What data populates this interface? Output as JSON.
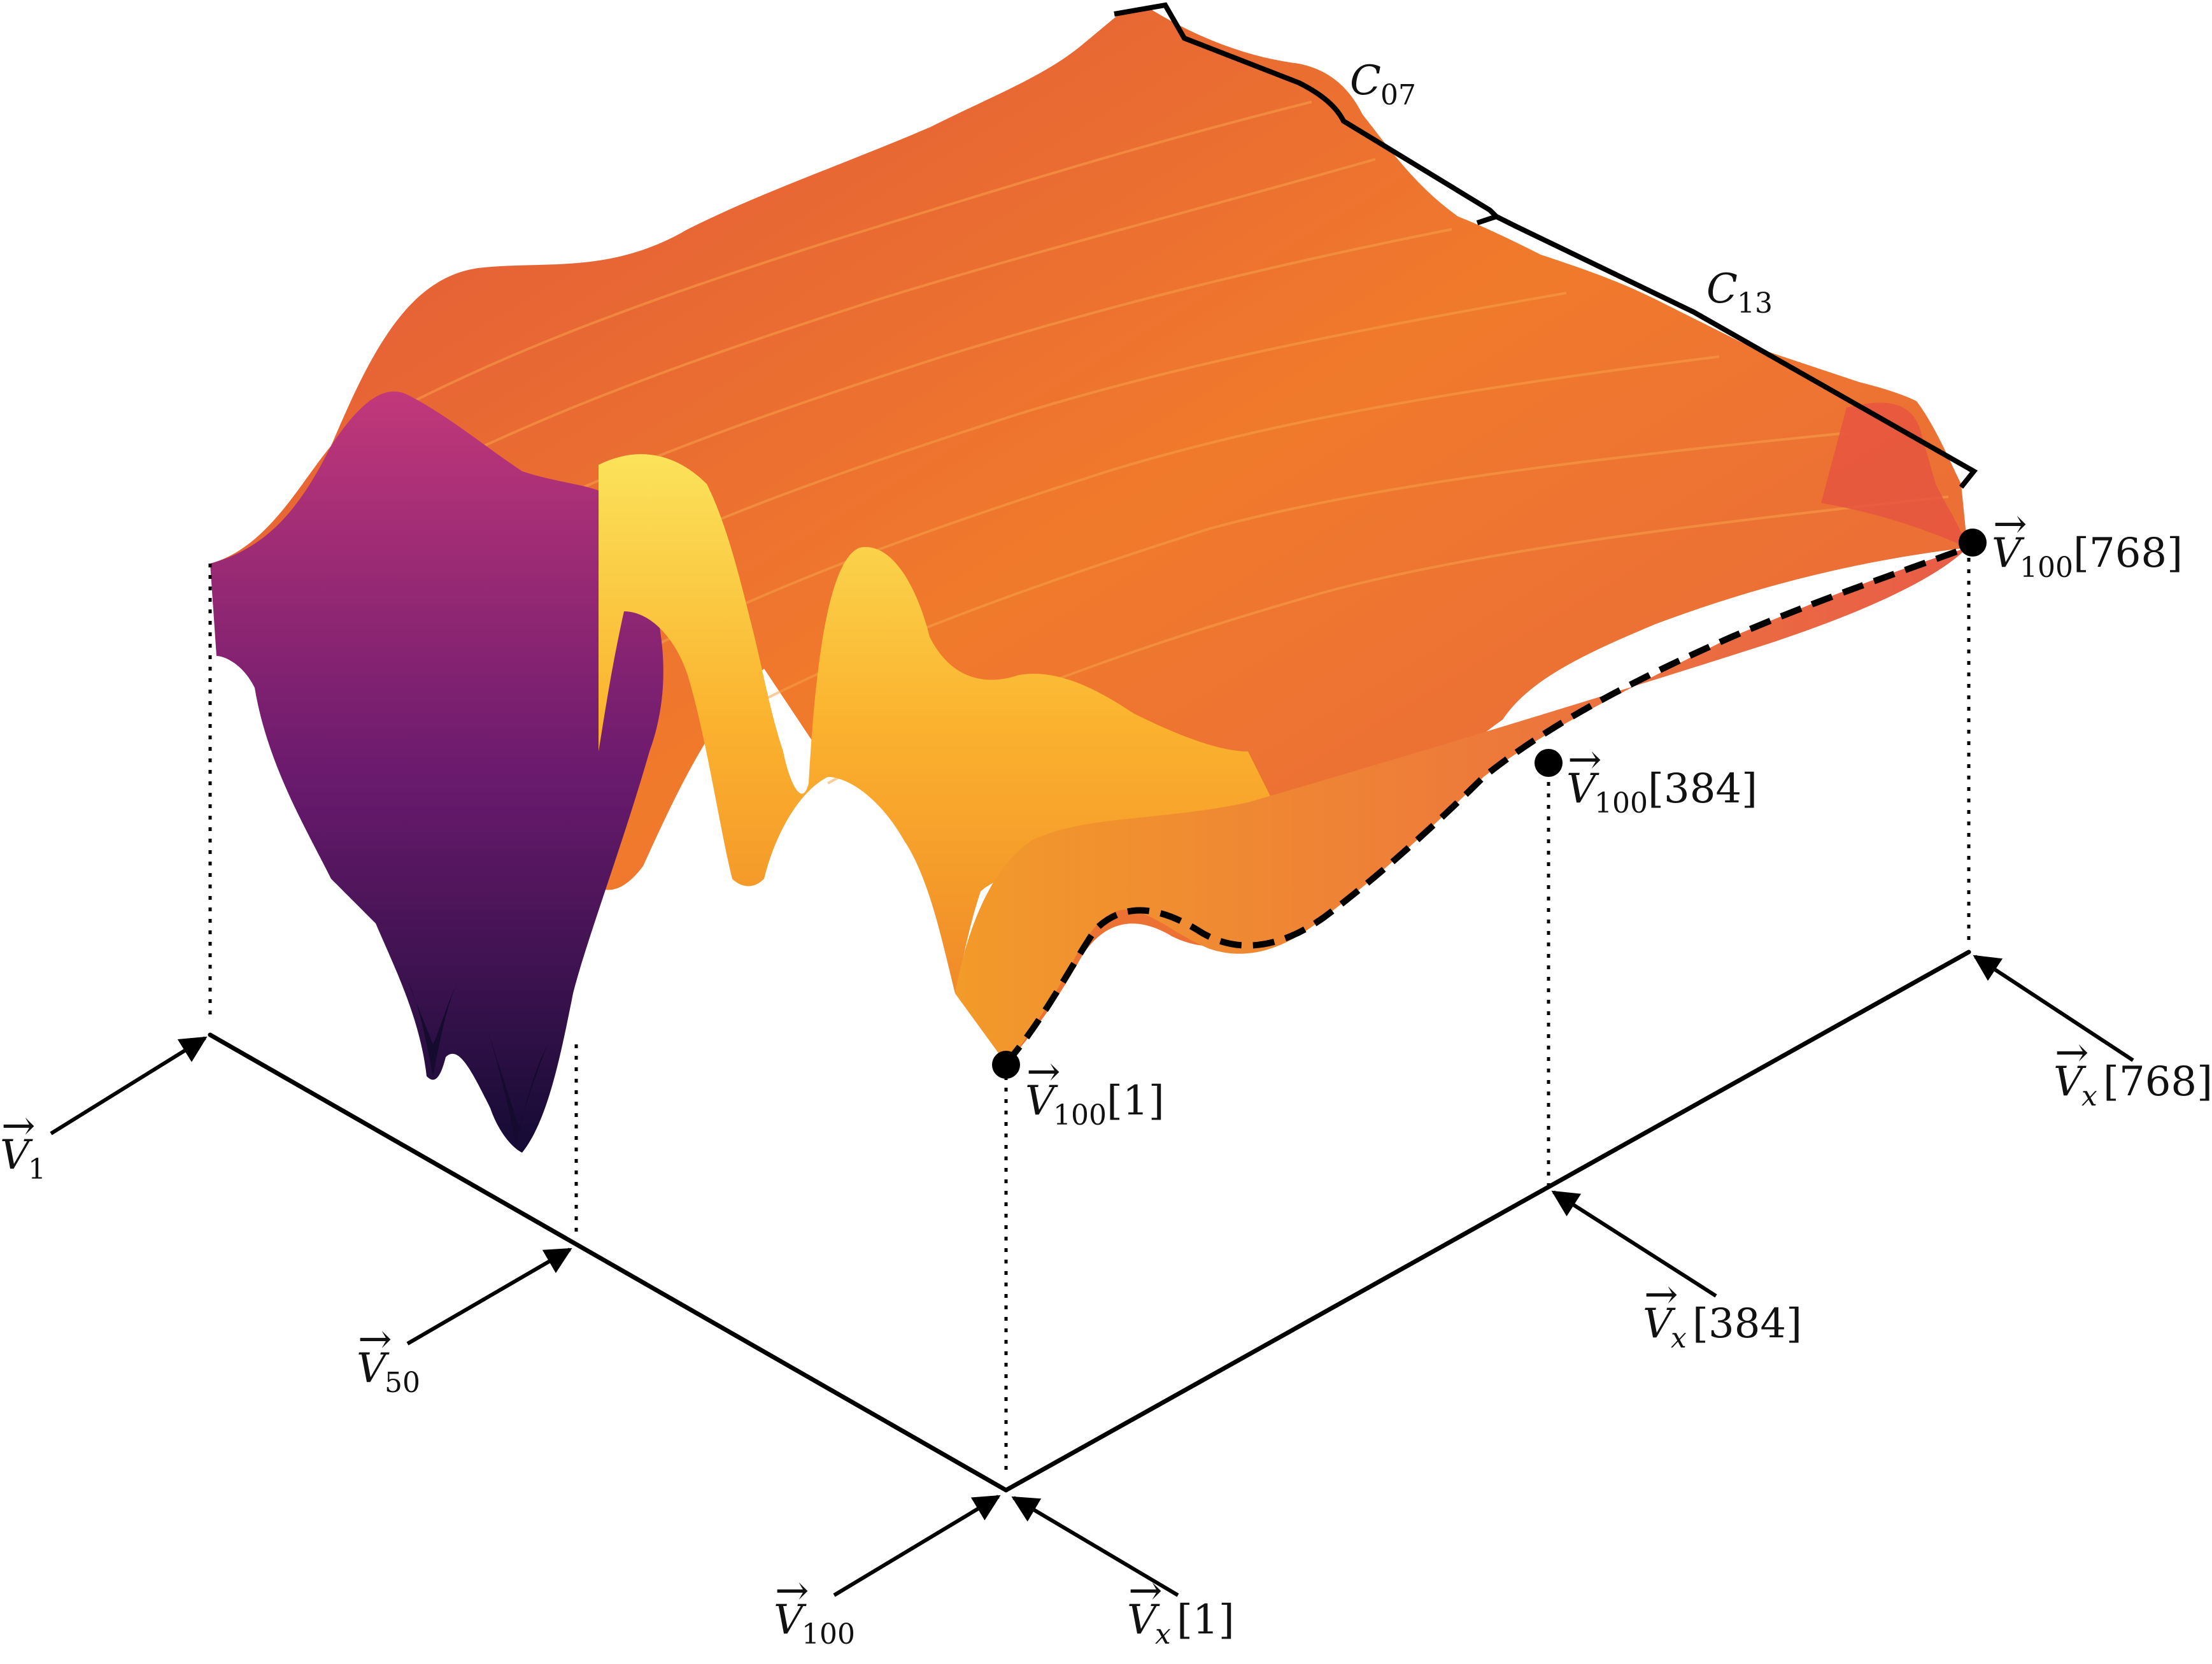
{
  "surface": {
    "colormap": [
      "#1b0c41",
      "#4a0c6b",
      "#781c6d",
      "#a52c60",
      "#cf4446",
      "#ed6925",
      "#fb9b06",
      "#f7d13d",
      "#fcffa4"
    ]
  },
  "labels": {
    "v1": {
      "base": "V",
      "sub": "1",
      "idx": ""
    },
    "v50": {
      "base": "V",
      "sub": "50",
      "idx": ""
    },
    "v100": {
      "base": "V",
      "sub": "100",
      "idx": ""
    },
    "vx1": {
      "base": "V",
      "sub": "x",
      "idx": "[1]"
    },
    "vx384": {
      "base": "V",
      "sub": "x",
      "idx": "[384]"
    },
    "vx768": {
      "base": "V",
      "sub": "x",
      "idx": "[768]"
    },
    "v100_1": {
      "base": "V",
      "sub": "100",
      "idx": "[1]"
    },
    "v100_384": {
      "base": "V",
      "sub": "100",
      "idx": "[384]"
    },
    "v100_768": {
      "base": "V",
      "sub": "100",
      "idx": "[768]"
    },
    "c07": {
      "base": "C",
      "sub": "07",
      "idx": ""
    },
    "c13": {
      "base": "C",
      "sub": "13",
      "idx": ""
    }
  }
}
